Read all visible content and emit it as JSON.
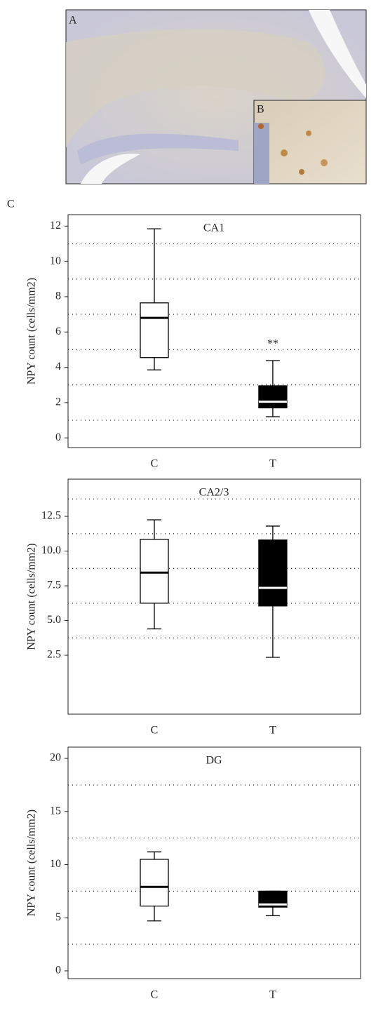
{
  "figure": {
    "labels": [
      "A",
      "B",
      "C"
    ]
  },
  "chart_data": [
    {
      "type": "box",
      "title": "CA1",
      "y_label": "NPY count (cells/mm2)",
      "categories": [
        "C",
        "T"
      ],
      "colors": [
        "#ffffff",
        "#000000"
      ],
      "median_colors": [
        "#000000",
        "#ffffff"
      ],
      "boxes": [
        {
          "low": 3.85,
          "q1": 4.55,
          "median": 6.8,
          "q3": 7.65,
          "high": 11.85
        },
        {
          "low": 1.2,
          "q1": 1.7,
          "median": 2.05,
          "q3": 2.95,
          "high": 4.38
        }
      ],
      "ylim": [
        -0.55,
        12.65
      ],
      "yticks": [
        0,
        2,
        4,
        6,
        8,
        10,
        12
      ],
      "grid": true,
      "grid_values": [
        1,
        3,
        5,
        7,
        9,
        11
      ],
      "annotations": [
        {
          "text": "**",
          "x": "T",
          "y": 5.3
        }
      ]
    },
    {
      "type": "box",
      "title": "CA2/3",
      "y_label": "NPY count (cells/mm2)",
      "categories": [
        "C",
        "T"
      ],
      "colors": [
        "#ffffff",
        "#000000"
      ],
      "median_colors": [
        "#000000",
        "#ffffff"
      ],
      "boxes": [
        {
          "low": 4.4,
          "q1": 6.25,
          "median": 8.45,
          "q3": 10.85,
          "high": 12.25
        },
        {
          "low": 2.35,
          "q1": 6.05,
          "median": 7.35,
          "q3": 10.8,
          "high": 11.8
        }
      ],
      "ylim": [
        -1.74,
        15.18
      ],
      "yticks": [
        2.5,
        {
          "value": 5,
          "label": "5.0"
        },
        7.5,
        {
          "value": 10,
          "label": "10.0"
        },
        12.5
      ],
      "grid": true,
      "grid_values": [
        3.75,
        6.25,
        8.75,
        11.25,
        13.75
      ]
    },
    {
      "type": "box",
      "title": "DG",
      "y_label": "NPY count (cells/mm2)",
      "categories": [
        "C",
        "T"
      ],
      "colors": [
        "#ffffff",
        "#000000"
      ],
      "median_colors": [
        "#000000",
        "#ffffff"
      ],
      "boxes": [
        {
          "low": 4.7,
          "q1": 6.1,
          "median": 7.9,
          "q3": 10.5,
          "high": 11.2
        },
        {
          "low": 5.2,
          "q1": 6.0,
          "median": 6.25,
          "q3": 7.5,
          "high": 7.5
        }
      ],
      "ylim": [
        -0.73,
        21.06
      ],
      "yticks": [
        0,
        5,
        10,
        15,
        20
      ],
      "grid": true,
      "grid_values": [
        2.5,
        7.5,
        12.5,
        17.5
      ]
    }
  ]
}
